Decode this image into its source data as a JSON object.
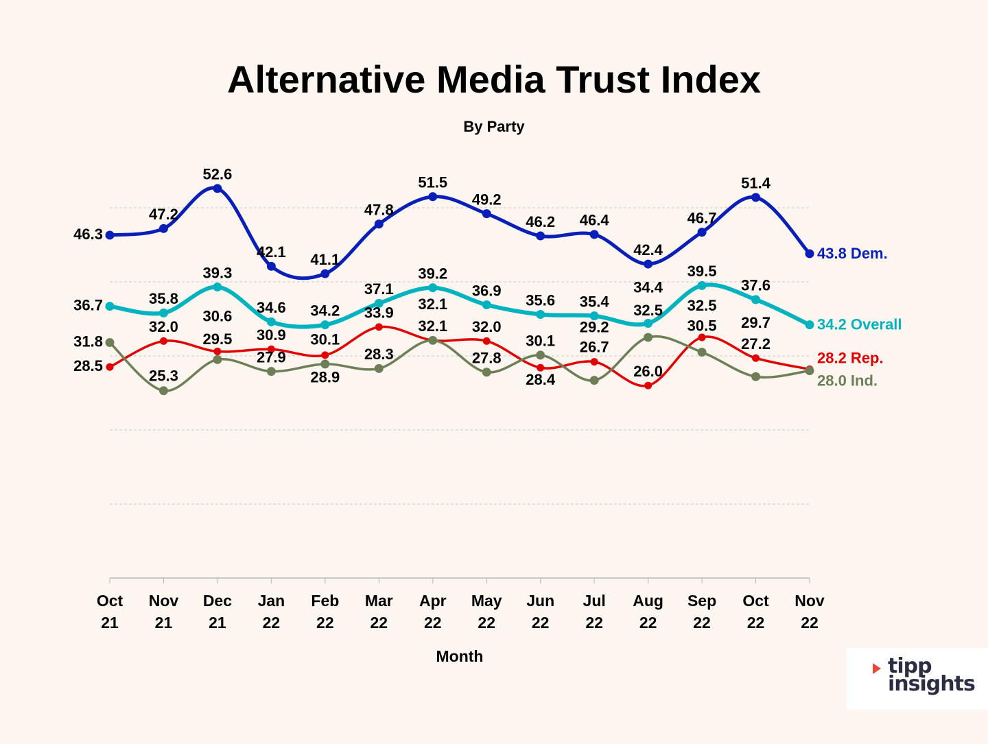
{
  "chart_data": {
    "type": "line",
    "title": "Alternative Media Trust Index",
    "subtitle": "By Party",
    "xlabel": "Month",
    "ylabel": "",
    "ylim": [
      0,
      50
    ],
    "grid": true,
    "categories": [
      [
        "Oct",
        "21"
      ],
      [
        "Nov",
        "21"
      ],
      [
        "Dec",
        "21"
      ],
      [
        "Jan",
        "22"
      ],
      [
        "Feb",
        "22"
      ],
      [
        "Mar",
        "22"
      ],
      [
        "Apr",
        "22"
      ],
      [
        "May",
        "22"
      ],
      [
        "Jun",
        "22"
      ],
      [
        "Jul",
        "22"
      ],
      [
        "Aug",
        "22"
      ],
      [
        "Sep",
        "22"
      ],
      [
        "Oct",
        "22"
      ],
      [
        "Nov",
        "22"
      ]
    ],
    "series": [
      {
        "name": "Dem.",
        "color": "#0a1fb8",
        "values": [
          46.3,
          47.2,
          52.6,
          42.1,
          41.1,
          47.8,
          51.5,
          49.2,
          46.2,
          46.4,
          42.4,
          46.7,
          51.4,
          43.8
        ]
      },
      {
        "name": "Overall",
        "color": "#00b3bf",
        "values": [
          36.7,
          35.8,
          39.3,
          34.6,
          34.2,
          37.1,
          39.2,
          36.9,
          35.6,
          35.4,
          34.4,
          39.5,
          37.6,
          34.2
        ]
      },
      {
        "name": "Rep.",
        "color": "#e00000",
        "values": [
          28.5,
          32.0,
          30.6,
          30.9,
          30.1,
          33.9,
          32.1,
          32.0,
          28.4,
          29.2,
          26.0,
          32.5,
          29.7,
          28.2
        ]
      },
      {
        "name": "Ind.",
        "color": "#6e7f57",
        "values": [
          31.8,
          25.3,
          29.5,
          27.9,
          28.9,
          28.3,
          32.1,
          27.8,
          30.1,
          26.7,
          32.5,
          30.5,
          27.2,
          28.0
        ]
      }
    ]
  },
  "logo": {
    "text": "tipp insights"
  }
}
